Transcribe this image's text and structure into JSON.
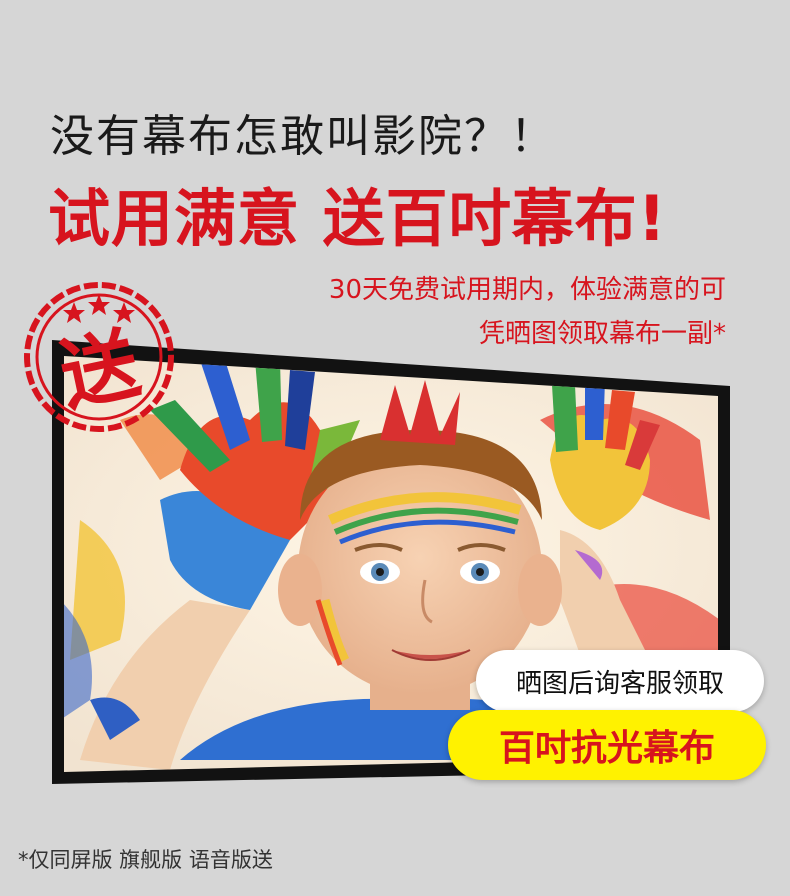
{
  "headline": "没有幕布怎敢叫影院？！",
  "main_title": "试用满意 送百吋幕布!",
  "subtext": {
    "line1": "30天免费试用期内，体验满意的可",
    "line2": "凭晒图领取幕布一副*"
  },
  "stamp": {
    "label": "送"
  },
  "badges": {
    "contact": "晒图后询客服领取",
    "prize": "百吋抗光幕布"
  },
  "footnote": "*仅同屏版 旗舰版  语音版送",
  "colors": {
    "accent_red": "#d7141e",
    "background": "#d6d6d6",
    "highlight_yellow": "#fff200"
  }
}
